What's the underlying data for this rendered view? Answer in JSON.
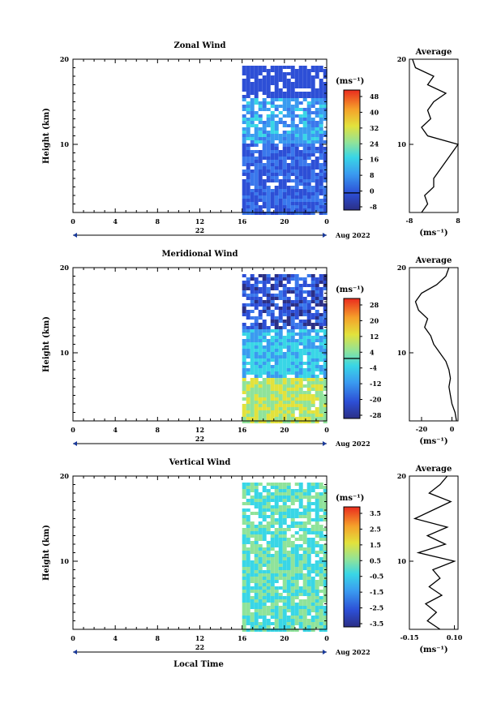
{
  "chart_data": [
    {
      "type": "heatmap",
      "title": "Zonal Wind",
      "ylabel": "Height (km)",
      "xticks": [
        "0",
        "4",
        "8",
        "12",
        "16",
        "20",
        "0"
      ],
      "day_label": "22",
      "date_label": "Aug 2022",
      "yticks": [
        "10",
        "20"
      ],
      "xlim": [
        0,
        24
      ],
      "ylim": [
        2,
        20
      ],
      "data_start_hour": 16,
      "unit_label": "(ms⁻¹)",
      "colorbar_ticks": [
        "48",
        "40",
        "32",
        "24",
        "16",
        "8",
        "0",
        "-8"
      ],
      "colorbar_range": [
        -8,
        48
      ],
      "zero_contour": 0,
      "average": {
        "title": "Average",
        "xlabel": "(ms⁻¹)",
        "xticks": [
          "-8",
          "8"
        ],
        "xlim": [
          -8,
          8
        ],
        "yticks": [
          "10",
          "20"
        ],
        "height": [
          2,
          3,
          4,
          5,
          6,
          7,
          8,
          9,
          10,
          11,
          12,
          13,
          14,
          15,
          16,
          17,
          18,
          19,
          20
        ],
        "value": [
          -4,
          -2,
          -3,
          0,
          0,
          2,
          4,
          6,
          8,
          -2,
          -4,
          -1,
          -2,
          0,
          4,
          -2,
          0,
          -6,
          -7
        ]
      }
    },
    {
      "type": "heatmap",
      "title": "Meridional Wind",
      "ylabel": "Height (km)",
      "xticks": [
        "0",
        "4",
        "8",
        "12",
        "16",
        "20",
        "0"
      ],
      "day_label": "22",
      "date_label": "Aug 2022",
      "yticks": [
        "10",
        "20"
      ],
      "xlim": [
        0,
        24
      ],
      "ylim": [
        2,
        20
      ],
      "data_start_hour": 16,
      "unit_label": "(ms⁻¹)",
      "colorbar_ticks": [
        "28",
        "20",
        "12",
        "4",
        "-4",
        "-12",
        "-20",
        "-28"
      ],
      "colorbar_range": [
        -28,
        28
      ],
      "zero_contour": 0,
      "average": {
        "title": "Average",
        "xlabel": "(ms⁻¹)",
        "xticks": [
          "-20",
          "0"
        ],
        "xlim": [
          -28,
          4
        ],
        "yticks": [
          "10",
          "20"
        ],
        "height": [
          2,
          3,
          4,
          5,
          6,
          7,
          8,
          9,
          10,
          11,
          12,
          13,
          14,
          15,
          16,
          17,
          18,
          19,
          20
        ],
        "value": [
          3,
          2,
          0,
          -1,
          -2,
          -1,
          -2,
          -4,
          -8,
          -12,
          -14,
          -18,
          -16,
          -22,
          -24,
          -20,
          -10,
          -4,
          -2
        ]
      }
    },
    {
      "type": "heatmap",
      "title": "Vertical Wind",
      "ylabel": "Height (km)",
      "xlabel": "Local Time",
      "xticks": [
        "0",
        "4",
        "8",
        "12",
        "16",
        "20",
        "0"
      ],
      "day_label": "22",
      "date_label": "Aug 2022",
      "yticks": [
        "10",
        "20"
      ],
      "xlim": [
        0,
        24
      ],
      "ylim": [
        2,
        20
      ],
      "data_start_hour": 16,
      "unit_label": "(ms⁻¹)",
      "colorbar_ticks": [
        "3.5",
        "2.5",
        "1.5",
        "0.5",
        "-0.5",
        "-1.5",
        "-2.5",
        "-3.5"
      ],
      "colorbar_range": [
        -3.5,
        3.5
      ],
      "average": {
        "title": "Average",
        "xlabel": "(ms⁻¹)",
        "xticks": [
          "-0.15",
          "0.10"
        ],
        "xlim": [
          -0.15,
          0.12
        ],
        "yticks": [
          "10",
          "20"
        ],
        "height": [
          2,
          3,
          4,
          5,
          6,
          7,
          8,
          9,
          10,
          11,
          12,
          13,
          14,
          15,
          16,
          17,
          18,
          19,
          20
        ],
        "value": [
          0.02,
          -0.05,
          0.0,
          -0.06,
          0.03,
          -0.04,
          0.02,
          -0.02,
          0.1,
          -0.1,
          0.05,
          -0.05,
          0.06,
          -0.12,
          -0.02,
          0.08,
          -0.04,
          0.02,
          0.06
        ]
      }
    }
  ]
}
